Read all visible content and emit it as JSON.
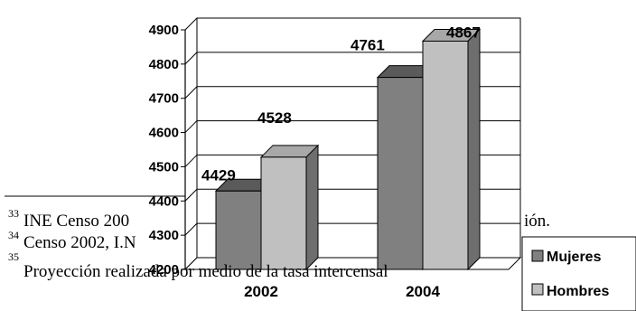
{
  "chart_data": {
    "type": "bar",
    "categories": [
      "2002",
      "2004"
    ],
    "series": [
      {
        "name": "Mujeres",
        "values": [
          4429,
          4761
        ]
      },
      {
        "name": "Hombres",
        "values": [
          4528,
          4867
        ]
      }
    ],
    "ylim": [
      4200,
      4900
    ],
    "yticks": [
      "4200",
      "4300",
      "4400",
      "4500",
      "4600",
      "4700",
      "4800",
      "4900"
    ],
    "data_labels": [
      [
        "4429",
        "4761"
      ],
      [
        "4528",
        "4867"
      ]
    ],
    "grid": true,
    "legend_position": "bottom-right",
    "colors": {
      "Mujeres": "#808080",
      "Hombres": "#c0c0c0"
    }
  },
  "footnotes": [
    {
      "num": "33",
      "text": "INE Censo 200"
    },
    {
      "num": "34",
      "text": "Censo 2002, I.N"
    },
    {
      "num": "35",
      "text": "Proyección realizada por medio de la tasa intercensal"
    }
  ],
  "footnote_fragment": "ión."
}
